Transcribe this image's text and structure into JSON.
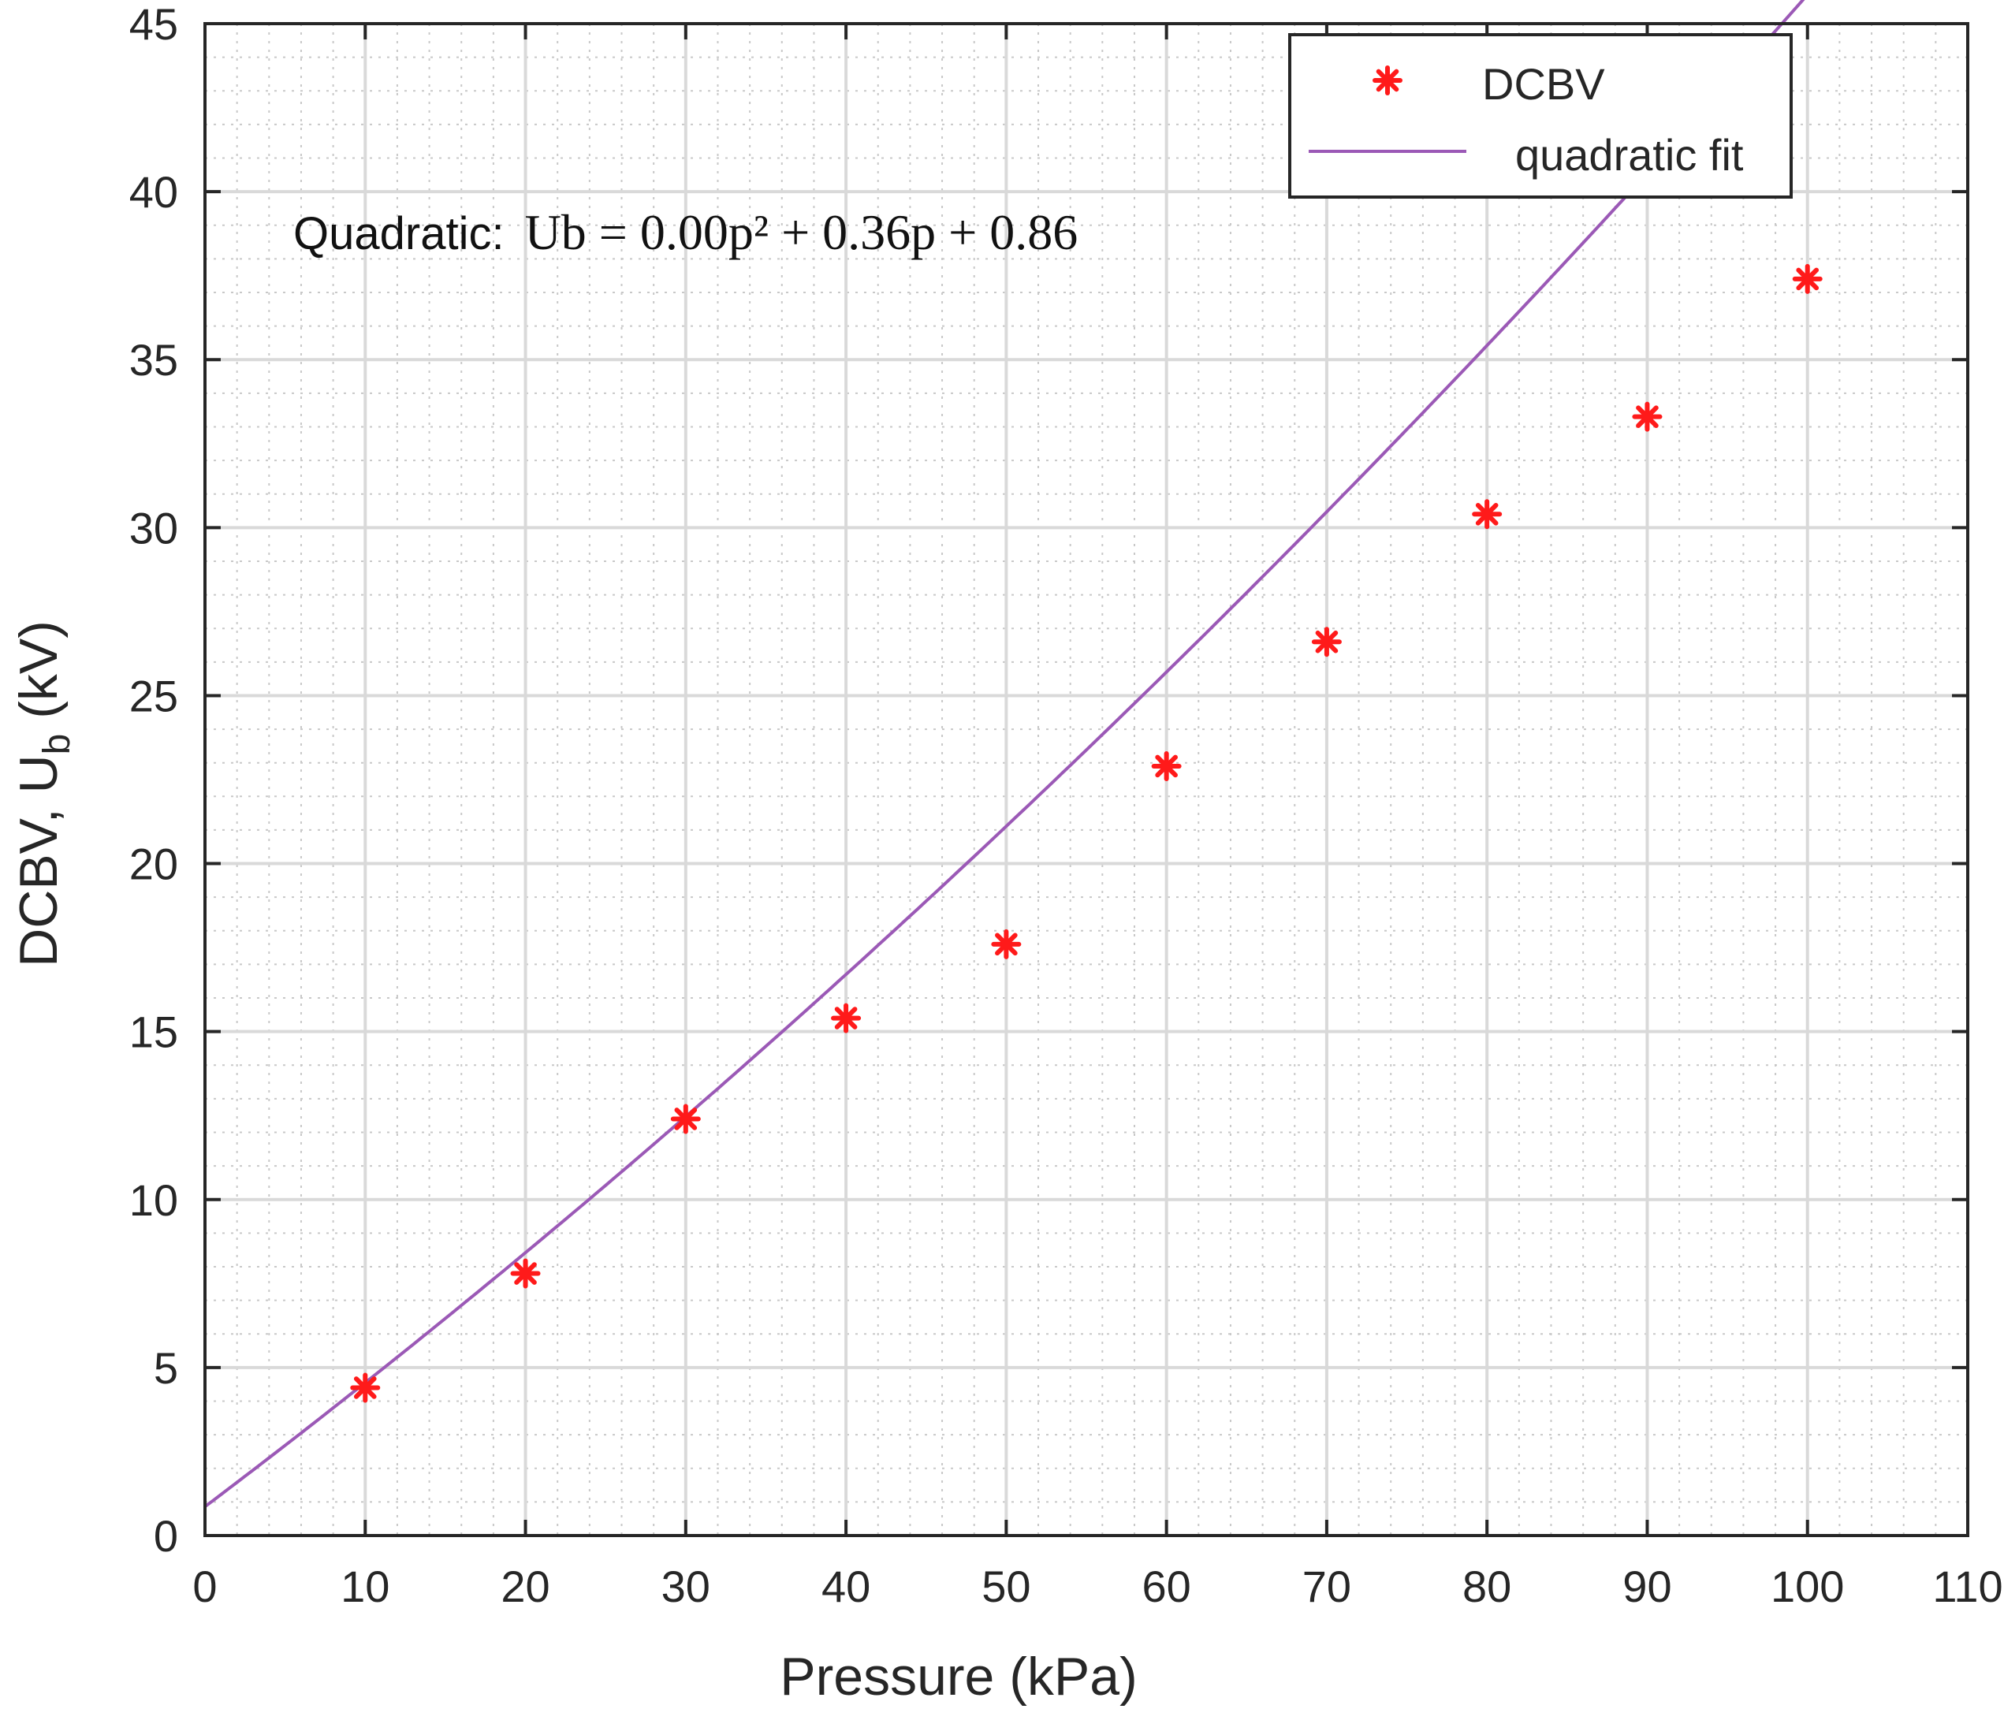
{
  "chart_data": {
    "type": "scatter",
    "xlabel": "Pressure (kPa)",
    "ylabel": {
      "main": "DCBV, U",
      "sub": "b",
      "unit": " (kV)"
    },
    "xlim": [
      0,
      110
    ],
    "ylim": [
      0,
      45
    ],
    "x_ticks": [
      "0",
      "10",
      "20",
      "30",
      "40",
      "50",
      "60",
      "70",
      "80",
      "90",
      "100",
      "110"
    ],
    "y_ticks": [
      "0",
      "5",
      "10",
      "15",
      "20",
      "25",
      "30",
      "35",
      "40",
      "45"
    ],
    "grid": true,
    "minor_grid": true,
    "legend_position": "top-right",
    "series": [
      {
        "name": "DCBV",
        "kind": "markers",
        "marker": "asterisk",
        "color": "#ff1a1a",
        "x": [
          10,
          20,
          30,
          40,
          50,
          60,
          70,
          80,
          90,
          100
        ],
        "y": [
          4.4,
          7.8,
          12.4,
          15.4,
          17.6,
          22.9,
          26.6,
          30.4,
          33.3,
          37.4
        ]
      },
      {
        "name": "quadratic fit",
        "kind": "line",
        "color": "#9b59b6",
        "coefficients": {
          "a": 0.0009,
          "b": 0.36,
          "c": 0.86
        }
      }
    ],
    "annotation": {
      "prefix": "Quadratic:",
      "equation": "Ub = 0.00p² + 0.36p + 0.86"
    }
  }
}
